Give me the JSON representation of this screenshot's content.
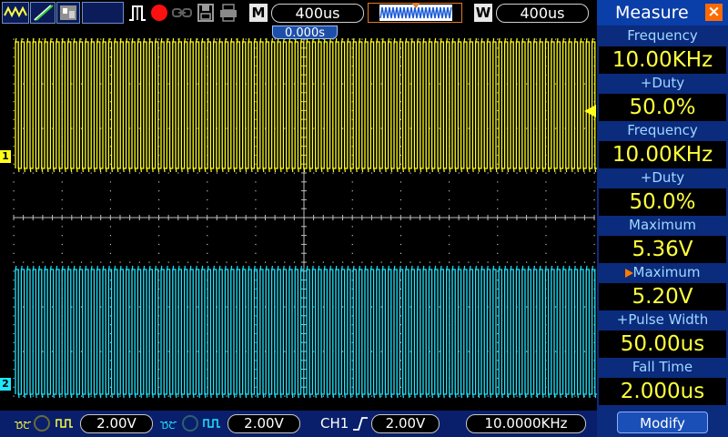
{
  "toolbar": {
    "m_label": "M",
    "m_time": "400us",
    "w_label": "W",
    "w_time": "400us",
    "trigger_offset": "0.000s"
  },
  "bottom": {
    "ch1_coupling": "DC",
    "ch1_scale": "2.00V",
    "ch2_coupling": "DC",
    "ch2_scale": "2.00V",
    "trigger_source": "CH1",
    "trigger_level": "2.00V",
    "frequency": "10.0000KHz"
  },
  "channels": {
    "ch1_marker": "1",
    "ch2_marker": "2",
    "ch1_color": "#ffff1a",
    "ch2_color": "#1ee6ff"
  },
  "measure": {
    "title": "Measure",
    "close_icon": "×",
    "items": [
      {
        "label": "Frequency",
        "value": "10.00KHz"
      },
      {
        "label": "+Duty",
        "value": "50.0%"
      },
      {
        "label": "Frequency",
        "value": "10.00KHz"
      },
      {
        "label": "+Duty",
        "value": "50.0%"
      },
      {
        "label": "Maximum",
        "value": "5.36V"
      },
      {
        "label": "Maximum",
        "value": "5.20V"
      },
      {
        "label": "+Pulse Width",
        "value": "50.00us"
      },
      {
        "label": "Fall Time",
        "value": "2.000us"
      }
    ],
    "modify_label": "Modify"
  }
}
